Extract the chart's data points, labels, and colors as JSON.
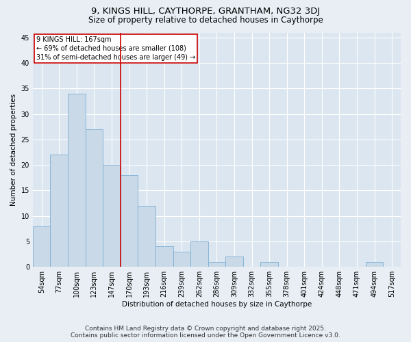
{
  "title": "9, KINGS HILL, CAYTHORPE, GRANTHAM, NG32 3DJ",
  "subtitle": "Size of property relative to detached houses in Caythorpe",
  "xlabel": "Distribution of detached houses by size in Caythorpe",
  "ylabel": "Number of detached properties",
  "bins": [
    "54sqm",
    "77sqm",
    "100sqm",
    "123sqm",
    "147sqm",
    "170sqm",
    "193sqm",
    "216sqm",
    "239sqm",
    "262sqm",
    "286sqm",
    "309sqm",
    "332sqm",
    "355sqm",
    "378sqm",
    "401sqm",
    "424sqm",
    "448sqm",
    "471sqm",
    "494sqm",
    "517sqm"
  ],
  "values": [
    8,
    22,
    34,
    27,
    20,
    18,
    12,
    4,
    3,
    5,
    1,
    2,
    0,
    1,
    0,
    0,
    0,
    0,
    0,
    1,
    0
  ],
  "bar_color": "#c9d9e8",
  "bar_edge_color": "#7bafd4",
  "vline_color": "#cc0000",
  "annotation_text": "9 KINGS HILL: 167sqm\n← 69% of detached houses are smaller (108)\n31% of semi-detached houses are larger (49) →",
  "annotation_box_color": "#ffffff",
  "annotation_box_edge": "#cc0000",
  "ylim": [
    0,
    46
  ],
  "yticks": [
    0,
    5,
    10,
    15,
    20,
    25,
    30,
    35,
    40,
    45
  ],
  "background_color": "#e8eef4",
  "plot_bg_color": "#dce6f0",
  "footer_line1": "Contains HM Land Registry data © Crown copyright and database right 2025.",
  "footer_line2": "Contains public sector information licensed under the Open Government Licence v3.0.",
  "title_fontsize": 9.5,
  "subtitle_fontsize": 8.5,
  "axis_label_fontsize": 7.5,
  "tick_fontsize": 7,
  "annotation_fontsize": 7,
  "footer_fontsize": 6.5
}
